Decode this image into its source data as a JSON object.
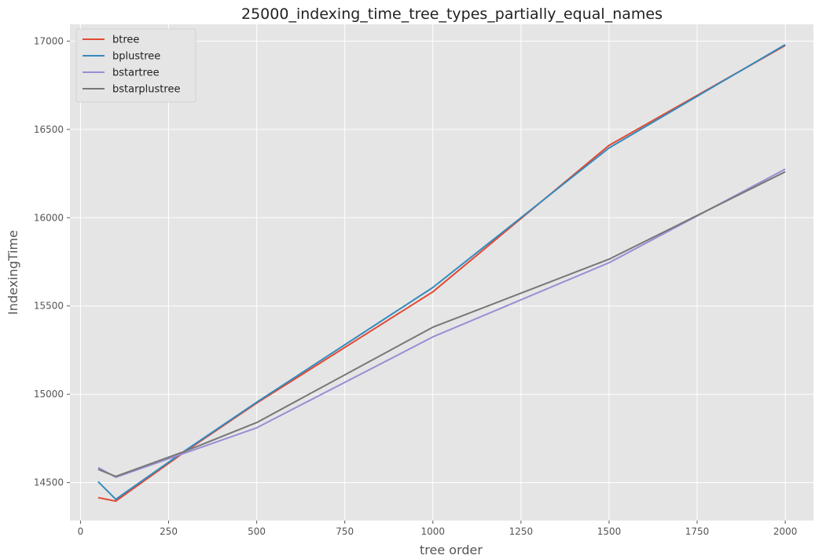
{
  "chart_data": {
    "type": "line",
    "title": "25000_indexing_time_tree_types_partially_equal_names",
    "xlabel": "tree order",
    "ylabel": "IndexingTime",
    "xlim": [
      -30,
      2080
    ],
    "ylim": [
      14285,
      17095
    ],
    "xticks": [
      0,
      250,
      500,
      750,
      1000,
      1250,
      1500,
      1750,
      2000
    ],
    "xtick_labels": [
      "0",
      "250",
      "500",
      "750",
      "1000",
      "1250",
      "1500",
      "1750",
      "2000"
    ],
    "yticks": [
      14500,
      15000,
      15500,
      16000,
      16500,
      17000
    ],
    "ytick_labels": [
      "14500",
      "15000",
      "15500",
      "16000",
      "16500",
      "17000"
    ],
    "grid": true,
    "legend_position": "top-left",
    "x": [
      50,
      100,
      300,
      500,
      1000,
      1500,
      2000
    ],
    "series": [
      {
        "name": "btree",
        "color": "#e24a33",
        "values": [
          14415,
          14395,
          14680,
          14950,
          15580,
          16410,
          16975
        ]
      },
      {
        "name": "bplustree",
        "color": "#348abd",
        "values": [
          14505,
          14405,
          14685,
          14955,
          15605,
          16395,
          16980
        ]
      },
      {
        "name": "bstartree",
        "color": "#988ed5",
        "values": [
          14585,
          14530,
          14670,
          14810,
          15325,
          15745,
          16275
        ]
      },
      {
        "name": "bstarplustree",
        "color": "#777777",
        "values": [
          14575,
          14535,
          14680,
          14840,
          15380,
          15765,
          16260
        ]
      }
    ]
  }
}
